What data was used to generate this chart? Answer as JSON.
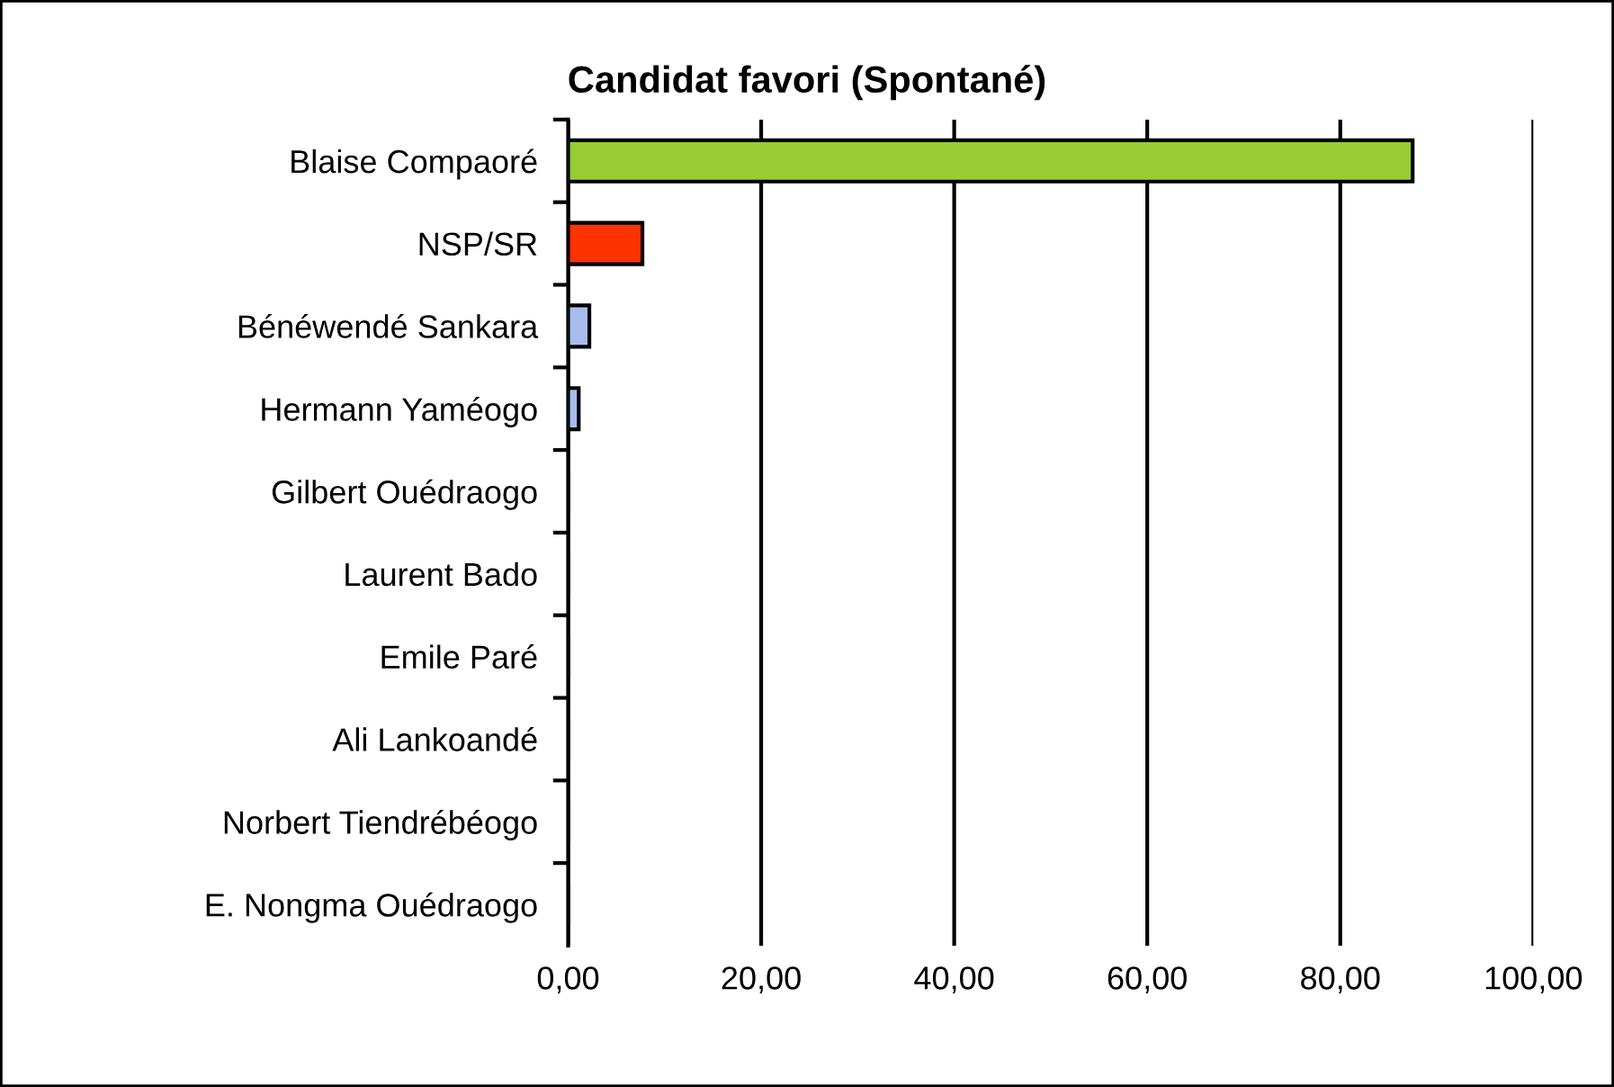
{
  "chart_data": {
    "type": "bar",
    "orientation": "horizontal",
    "title": "Candidat favori (Spontané)",
    "categories": [
      "Blaise Compaoré",
      "NSP/SR",
      "Bénéwendé Sankara",
      "Hermann Yaméogo",
      "Gilbert Ouédraogo",
      "Laurent Bado",
      "Emile Paré",
      "Ali Lankoandé",
      "Norbert Tiendrébéogo",
      "E. Nongma Ouédraogo"
    ],
    "values": [
      87.5,
      7.7,
      2.2,
      1.1,
      0,
      0,
      0,
      0,
      0,
      0
    ],
    "colors": [
      "#99cc33",
      "#ff3300",
      "#aabbee",
      "#aabbee",
      "#000000",
      "#000000",
      "#000000",
      "#000000",
      "#000000",
      "#000000"
    ],
    "xlim": [
      0,
      100
    ],
    "xticks": [
      {
        "value": 0,
        "label": "0,00"
      },
      {
        "value": 20,
        "label": "20,00"
      },
      {
        "value": 40,
        "label": "40,00"
      },
      {
        "value": 60,
        "label": "60,00"
      },
      {
        "value": 80,
        "label": "80,00"
      },
      {
        "value": 100,
        "label": "100,00"
      }
    ],
    "grid": "x",
    "legend": false
  }
}
